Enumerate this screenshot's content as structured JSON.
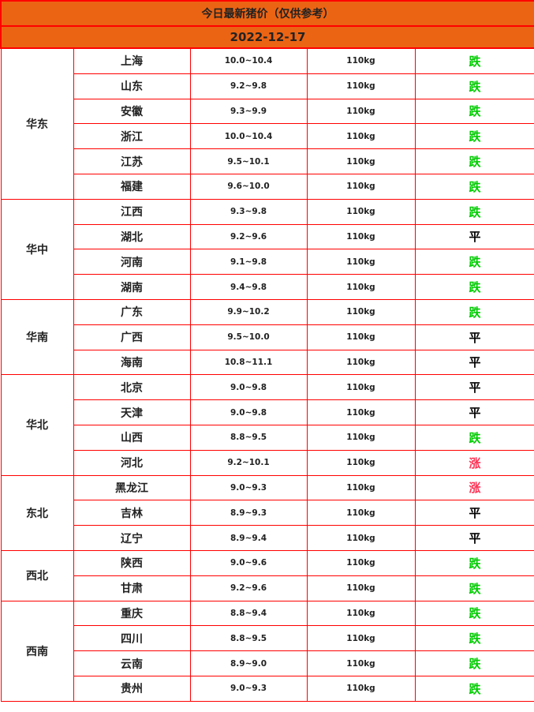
{
  "title": "今日最新猪价（仅供参考）",
  "date": "2022-12-17",
  "colors": {
    "header_bg": "#eb6414",
    "border": "#ff0000",
    "down": "#00cc00",
    "up": "#ff3355",
    "flat": "#000000"
  },
  "regions": [
    {
      "name": "华东",
      "rows": [
        {
          "province": "上海",
          "price": "10.0~10.4",
          "weight": "110kg",
          "trend": "跌"
        },
        {
          "province": "山东",
          "price": "9.2~9.8",
          "weight": "110kg",
          "trend": "跌"
        },
        {
          "province": "安徽",
          "price": "9.3~9.9",
          "weight": "110kg",
          "trend": "跌"
        },
        {
          "province": "浙江",
          "price": "10.0~10.4",
          "weight": "110kg",
          "trend": "跌"
        },
        {
          "province": "江苏",
          "price": "9.5~10.1",
          "weight": "110kg",
          "trend": "跌"
        },
        {
          "province": "福建",
          "price": "9.6~10.0",
          "weight": "110kg",
          "trend": "跌"
        }
      ]
    },
    {
      "name": "华中",
      "rows": [
        {
          "province": "江西",
          "price": "9.3~9.8",
          "weight": "110kg",
          "trend": "跌"
        },
        {
          "province": "湖北",
          "price": "9.2~9.6",
          "weight": "110kg",
          "trend": "平"
        },
        {
          "province": "河南",
          "price": "9.1~9.8",
          "weight": "110kg",
          "trend": "跌"
        },
        {
          "province": "湖南",
          "price": "9.4~9.8",
          "weight": "110kg",
          "trend": "跌"
        }
      ]
    },
    {
      "name": "华南",
      "rows": [
        {
          "province": "广东",
          "price": "9.9~10.2",
          "weight": "110kg",
          "trend": "跌"
        },
        {
          "province": "广西",
          "price": "9.5~10.0",
          "weight": "110kg",
          "trend": "平"
        },
        {
          "province": "海南",
          "price": "10.8~11.1",
          "weight": "110kg",
          "trend": "平"
        }
      ]
    },
    {
      "name": "华北",
      "rows": [
        {
          "province": "北京",
          "price": "9.0~9.8",
          "weight": "110kg",
          "trend": "平"
        },
        {
          "province": "天津",
          "price": "9.0~9.8",
          "weight": "110kg",
          "trend": "平"
        },
        {
          "province": "山西",
          "price": "8.8~9.5",
          "weight": "110kg",
          "trend": "跌"
        },
        {
          "province": "河北",
          "price": "9.2~10.1",
          "weight": "110kg",
          "trend": "涨"
        }
      ]
    },
    {
      "name": "东北",
      "rows": [
        {
          "province": "黑龙江",
          "price": "9.0~9.3",
          "weight": "110kg",
          "trend": "涨"
        },
        {
          "province": "吉林",
          "price": "8.9~9.3",
          "weight": "110kg",
          "trend": "平"
        },
        {
          "province": "辽宁",
          "price": "8.9~9.4",
          "weight": "110kg",
          "trend": "平"
        }
      ]
    },
    {
      "name": "西北",
      "rows": [
        {
          "province": "陕西",
          "price": "9.0~9.6",
          "weight": "110kg",
          "trend": "跌"
        },
        {
          "province": "甘肃",
          "price": "9.2~9.6",
          "weight": "110kg",
          "trend": "跌"
        }
      ]
    },
    {
      "name": "西南",
      "rows": [
        {
          "province": "重庆",
          "price": "8.8~9.4",
          "weight": "110kg",
          "trend": "跌"
        },
        {
          "province": "四川",
          "price": "8.8~9.5",
          "weight": "110kg",
          "trend": "跌"
        },
        {
          "province": "云南",
          "price": "8.9~9.0",
          "weight": "110kg",
          "trend": "跌"
        },
        {
          "province": "贵州",
          "price": "9.0~9.3",
          "weight": "110kg",
          "trend": "跌"
        }
      ]
    }
  ]
}
